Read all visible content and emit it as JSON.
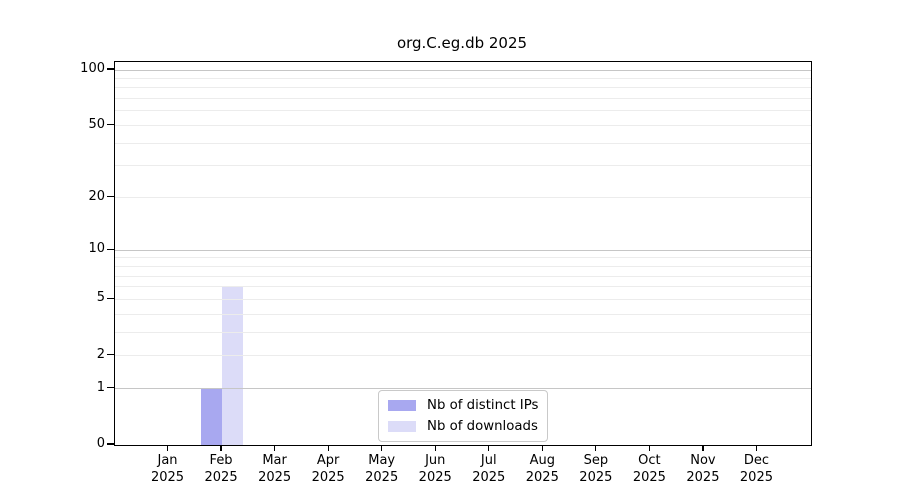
{
  "chart_data": {
    "type": "bar",
    "title": "org.C.eg.db 2025",
    "categories": [
      "Jan 2025",
      "Feb 2025",
      "Mar 2025",
      "Apr 2025",
      "May 2025",
      "Jun 2025",
      "Jul 2025",
      "Aug 2025",
      "Sep 2025",
      "Oct 2025",
      "Nov 2025",
      "Dec 2025"
    ],
    "series": [
      {
        "name": "Nb of distinct IPs",
        "color": "#a8a8f0",
        "values": [
          0,
          1,
          0,
          0,
          0,
          0,
          0,
          0,
          0,
          0,
          0,
          0
        ]
      },
      {
        "name": "Nb of downloads",
        "color": "#dcdcf8",
        "values": [
          0,
          6,
          0,
          0,
          0,
          0,
          0,
          0,
          0,
          0,
          0,
          0
        ]
      }
    ],
    "xlabel": "",
    "ylabel": "",
    "yscale": "log1p",
    "ylim": [
      0,
      110
    ],
    "yticks": [
      0,
      1,
      2,
      5,
      10,
      20,
      50,
      100
    ],
    "minor_gridlines": [
      3,
      4,
      6,
      7,
      8,
      9,
      30,
      40,
      60,
      70,
      80,
      90
    ],
    "decade_gridlines": [
      1,
      10,
      100
    ],
    "grid": "horizontal",
    "legend_position": "bottom-center"
  },
  "colors": {
    "grid_decade": "#c6c6c6",
    "grid_minor": "#ececec",
    "axis": "#000000",
    "background": "#ffffff"
  }
}
